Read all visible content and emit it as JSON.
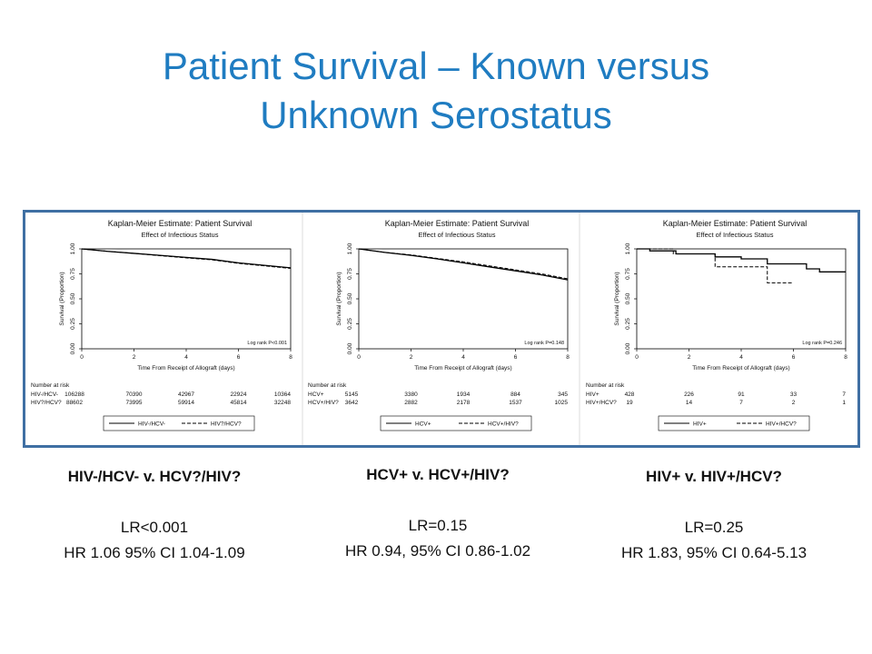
{
  "title_line1": "Patient Survival – Known versus",
  "title_line2": "Unknown Serostatus",
  "colors": {
    "title": "#1f7cc1",
    "frame_border": "#3f6fa3",
    "curve": "#000000"
  },
  "captions": [
    {
      "title": "HIV-/HCV- v. HCV?/HIV?",
      "lr": "LR<0.001",
      "hr": "HR 1.06 95% CI 1.04-1.09"
    },
    {
      "title": "HCV+ v. HCV+/HIV?",
      "lr": "LR=0.15",
      "hr": "HR 0.94, 95% CI 0.86-1.02"
    },
    {
      "title": "HIV+ v. HIV+/HCV?",
      "lr": "LR=0.25",
      "hr": "HR 1.83, 95% CI 0.64-5.13"
    }
  ],
  "chart_data": [
    {
      "type": "line",
      "title": "Kaplan-Meier Estimate: Patient Survival",
      "subtitle": "Effect of Infectious Status",
      "xlabel": "Time From Receipt of Allograft (days)",
      "ylabel": "Survival (Proportion)",
      "xlim": [
        0,
        8
      ],
      "ylim": [
        0,
        1
      ],
      "x_ticks": [
        "0",
        "2",
        "4",
        "6",
        "8"
      ],
      "y_ticks": [
        "0.00",
        "0.25",
        "0.50",
        "0.75",
        "1.00"
      ],
      "logrank_text": "Log rank P<0.001",
      "risk_header": "Number at risk",
      "series": [
        {
          "name": "HIV-/HCV-",
          "style": "solid",
          "x": [
            0,
            1,
            2,
            3,
            4,
            5,
            6,
            7,
            8
          ],
          "y": [
            1.0,
            0.975,
            0.955,
            0.935,
            0.915,
            0.895,
            0.86,
            0.835,
            0.81
          ],
          "risk_label": "HIV-/HCV-",
          "at_risk": [
            "106288",
            "70390",
            "42967",
            "22924",
            "10364"
          ]
        },
        {
          "name": "HIV?/HCV?",
          "style": "dashed",
          "x": [
            0,
            1,
            2,
            3,
            4,
            5,
            6,
            7,
            8
          ],
          "y": [
            1.0,
            0.975,
            0.955,
            0.932,
            0.91,
            0.89,
            0.855,
            0.83,
            0.805
          ],
          "risk_label": "HIV?/HCV?",
          "at_risk": [
            "88602",
            "73995",
            "59914",
            "45814",
            "32248"
          ]
        }
      ]
    },
    {
      "type": "line",
      "title": "Kaplan-Meier Estimate: Patient Survival",
      "subtitle": "Effect of Infectious Status",
      "xlabel": "Time From Receipt of Allograft (days)",
      "ylabel": "Survival (Proportion)",
      "xlim": [
        0,
        8
      ],
      "ylim": [
        0,
        1
      ],
      "x_ticks": [
        "0",
        "2",
        "4",
        "6",
        "8"
      ],
      "y_ticks": [
        "0.00",
        "0.25",
        "0.50",
        "0.75",
        "1.00"
      ],
      "logrank_text": "Log rank P=0.148",
      "risk_header": "Number at risk",
      "series": [
        {
          "name": "HCV+",
          "style": "solid",
          "x": [
            0,
            1,
            2,
            3,
            4,
            5,
            6,
            7,
            8
          ],
          "y": [
            1.0,
            0.965,
            0.935,
            0.9,
            0.86,
            0.82,
            0.78,
            0.74,
            0.69
          ],
          "risk_label": "HCV+",
          "at_risk": [
            "5145",
            "3380",
            "1934",
            "884",
            "345"
          ]
        },
        {
          "name": "HCV+/HIV?",
          "style": "dashed",
          "x": [
            0,
            1,
            2,
            3,
            4,
            5,
            6,
            7,
            8
          ],
          "y": [
            1.0,
            0.965,
            0.94,
            0.905,
            0.87,
            0.83,
            0.79,
            0.75,
            0.7
          ],
          "risk_label": "HCV+/HIV?",
          "at_risk": [
            "3642",
            "2882",
            "2178",
            "1537",
            "1025"
          ]
        }
      ]
    },
    {
      "type": "line",
      "title": "Kaplan-Meier Estimate: Patient Survival",
      "subtitle": "Effect of Infectious Status",
      "xlabel": "Time From Receipt of Allograft (days)",
      "ylabel": "Survival (Proportion)",
      "xlim": [
        0,
        8
      ],
      "ylim": [
        0,
        1
      ],
      "x_ticks": [
        "0",
        "2",
        "4",
        "6",
        "8"
      ],
      "y_ticks": [
        "0.00",
        "0.25",
        "0.50",
        "0.75",
        "1.00"
      ],
      "logrank_text": "Log rank P=0.246",
      "risk_header": "Number at risk",
      "series": [
        {
          "name": "HIV+",
          "style": "solid",
          "step": true,
          "x": [
            0,
            0.5,
            1.5,
            2.5,
            3.0,
            4.0,
            5.0,
            6.5,
            7.0,
            8.0
          ],
          "y": [
            1.0,
            0.98,
            0.95,
            0.95,
            0.92,
            0.9,
            0.85,
            0.8,
            0.77,
            0.77
          ],
          "risk_label": "HIV+",
          "at_risk": [
            "428",
            "226",
            "91",
            "33",
            "7"
          ]
        },
        {
          "name": "HIV+/HCV?",
          "style": "dashed",
          "step": true,
          "x": [
            0,
            0.6,
            1.4,
            3.0,
            5.0,
            6.0
          ],
          "y": [
            1.0,
            1.0,
            0.95,
            0.82,
            0.66,
            0.66
          ],
          "risk_label": "HIV+/HCV?",
          "at_risk": [
            "19",
            "14",
            "7",
            "2",
            "1"
          ]
        }
      ]
    }
  ]
}
